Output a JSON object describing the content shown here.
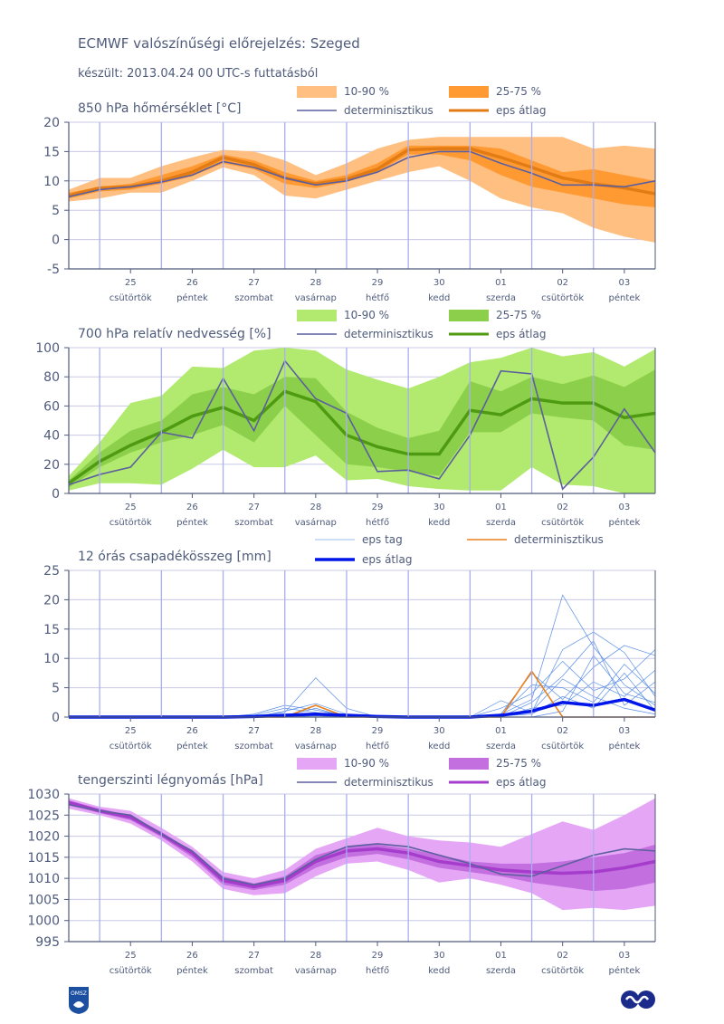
{
  "header": {
    "title": "ECMWF valószínűségi előrejelzés: Szeged",
    "subtitle": "készült: 2013.04.24 00 UTC-s futtatásból"
  },
  "logos": {
    "left": "OMSZ",
    "right": "ECMWF"
  },
  "colors": {
    "axis": "#4f5b7b",
    "grid": "#c8c8e6",
    "day_line": "#a9aef0",
    "deterministic": "#5c5f9e",
    "temp_band_outer": "#ffbf80",
    "temp_band_inner": "#ff9a33",
    "temp_mean": "#e37b14",
    "rh_band_outer": "#b1ea6e",
    "rh_band_inner": "#8ccf4b",
    "rh_mean": "#4e9b12",
    "precip_member": "#5a8fe6",
    "precip_det": "#e8801c",
    "precip_mean": "#0016e8",
    "pres_band_outer": "#e6a6f6",
    "pres_band_inner": "#c36fdf",
    "pres_mean": "#a53ccc"
  },
  "days": [
    {
      "num": "25",
      "name": "csütörtök"
    },
    {
      "num": "26",
      "name": "péntek"
    },
    {
      "num": "27",
      "name": "szombat"
    },
    {
      "num": "28",
      "name": "vasárnap"
    },
    {
      "num": "29",
      "name": "hétfő"
    },
    {
      "num": "30",
      "name": "kedd"
    },
    {
      "num": "01",
      "name": "szerda"
    },
    {
      "num": "02",
      "name": "csütörtök"
    },
    {
      "num": "03",
      "name": "péntek"
    }
  ],
  "chart_data": [
    {
      "type": "area",
      "title": "850 hPa hőmérséklet [°C]",
      "ylim": [
        -5,
        20
      ],
      "yticks": [
        -5,
        0,
        5,
        10,
        15,
        20
      ],
      "x_hours": [
        0,
        12,
        24,
        36,
        48,
        60,
        72,
        84,
        96,
        108,
        120,
        132,
        144,
        156,
        168,
        180,
        192,
        204,
        216,
        228
      ],
      "legend": {
        "outer": "10-90 %",
        "inner": "25-75 %",
        "det": "determinisztikus",
        "mean": "eps átlag"
      },
      "p10": [
        6.5,
        7.0,
        8.0,
        8.0,
        10.0,
        12.3,
        11.0,
        7.5,
        7.0,
        8.5,
        10.0,
        11.5,
        12.5,
        10.0,
        7.0,
        5.5,
        4.5,
        2.0,
        0.5,
        -0.5
      ],
      "p25": [
        7.0,
        8.2,
        8.5,
        9.5,
        10.8,
        13.0,
        12.0,
        9.5,
        8.8,
        9.8,
        11.5,
        14.5,
        14.5,
        13.5,
        11.0,
        9.0,
        8.0,
        7.0,
        6.0,
        5.5
      ],
      "p75": [
        8.0,
        9.0,
        9.5,
        11.0,
        12.5,
        14.5,
        13.5,
        11.5,
        10.0,
        11.0,
        13.0,
        16.0,
        16.0,
        16.0,
        15.5,
        13.5,
        11.5,
        12.0,
        11.0,
        10.0
      ],
      "p90": [
        8.5,
        10.5,
        10.5,
        12.5,
        14.0,
        15.3,
        15.0,
        13.5,
        11.0,
        13.0,
        15.5,
        17.0,
        17.5,
        17.5,
        17.5,
        17.5,
        17.5,
        15.5,
        16.0,
        15.5
      ],
      "mean": [
        7.5,
        8.8,
        9.0,
        10.0,
        11.5,
        14.0,
        12.8,
        10.5,
        9.5,
        10.3,
        12.0,
        15.3,
        15.5,
        15.5,
        14.0,
        12.3,
        10.5,
        9.5,
        8.8,
        7.8
      ],
      "det": [
        7.3,
        8.5,
        9.0,
        9.8,
        11.0,
        13.3,
        12.3,
        10.5,
        9.3,
        10.0,
        11.5,
        14.0,
        15.0,
        15.0,
        13.0,
        11.3,
        9.3,
        9.3,
        9.0,
        10.0
      ]
    },
    {
      "type": "area",
      "title": "700 hPa relatív nedvesség [%]",
      "ylim": [
        0,
        100
      ],
      "yticks": [
        0,
        20,
        40,
        60,
        80,
        100
      ],
      "x_hours": [
        0,
        12,
        24,
        36,
        48,
        60,
        72,
        84,
        96,
        108,
        120,
        132,
        144,
        156,
        168,
        180,
        192,
        204,
        216,
        228
      ],
      "legend": {
        "outer": "10-90 %",
        "inner": "25-75 %",
        "det": "determinisztikus",
        "mean": "eps átlag"
      },
      "p10": [
        2,
        7,
        7,
        6,
        17,
        30,
        18,
        18,
        26,
        9,
        10,
        5,
        3,
        2,
        2,
        18,
        6,
        5,
        0,
        0
      ],
      "p25": [
        4,
        18,
        28,
        35,
        40,
        47,
        35,
        60,
        40,
        20,
        18,
        15,
        12,
        42,
        42,
        55,
        52,
        50,
        33,
        30
      ],
      "p75": [
        9,
        28,
        43,
        50,
        68,
        73,
        68,
        80,
        79,
        56,
        45,
        38,
        43,
        77,
        70,
        80,
        75,
        81,
        73,
        85
      ],
      "p90": [
        12,
        35,
        62,
        67,
        87,
        86,
        98,
        100,
        98,
        85,
        78,
        72,
        80,
        90,
        93,
        100,
        94,
        97,
        87,
        99
      ],
      "mean": [
        7,
        22,
        33,
        42,
        53,
        59,
        50,
        70,
        63,
        40,
        32,
        27,
        27,
        57,
        54,
        65,
        62,
        62,
        52,
        55
      ],
      "det": [
        6,
        13,
        18,
        42,
        38,
        79,
        43,
        91,
        65,
        55,
        15,
        16,
        10,
        40,
        84,
        82,
        3,
        25,
        58,
        28
      ]
    },
    {
      "type": "line",
      "title": "12 órás csapadékösszeg [mm]",
      "ylim": [
        0,
        25
      ],
      "yticks": [
        0,
        5,
        10,
        15,
        20,
        25
      ],
      "x_hours": [
        0,
        12,
        24,
        36,
        48,
        60,
        72,
        84,
        96,
        108,
        120,
        132,
        144,
        156,
        168,
        180,
        192,
        204,
        216,
        228
      ],
      "legend": {
        "member": "eps tag",
        "det": "determinisztikus",
        "mean": "eps átlag"
      },
      "mean": [
        0,
        0,
        0,
        0,
        0,
        0,
        0.1,
        0.3,
        0.5,
        0.3,
        0.1,
        0,
        0,
        0,
        0.3,
        1.0,
        2.5,
        2.0,
        3.0,
        1.2
      ],
      "det": [
        0,
        0,
        0,
        0,
        0,
        0,
        0,
        0,
        2.0,
        0,
        0,
        0,
        0,
        0,
        0,
        7.8,
        0,
        0,
        0,
        0
      ],
      "members": [
        [
          0,
          0,
          0,
          0,
          0,
          0,
          0,
          1.0,
          2.3,
          0.5,
          0,
          0,
          0,
          0,
          0.5,
          3.0,
          20.8,
          12.0,
          5.5,
          2.0
        ],
        [
          0,
          0,
          0,
          0,
          0,
          0,
          0.2,
          0.8,
          6.7,
          1.5,
          0,
          0,
          0,
          0,
          2.8,
          0.8,
          11.5,
          14.5,
          11.0,
          3.5
        ],
        [
          0,
          0,
          0,
          0,
          0,
          0,
          0.5,
          2.0,
          1.2,
          0.2,
          0,
          0,
          0,
          0,
          0.5,
          7.5,
          3.0,
          8.5,
          12.2,
          10.5
        ],
        [
          0,
          0,
          0,
          0,
          0,
          0,
          0,
          0.3,
          0.5,
          0,
          0,
          0,
          0,
          0,
          1.5,
          4.0,
          9.5,
          4.5,
          6.5,
          11.5
        ],
        [
          0,
          0,
          0,
          0,
          0,
          0,
          0.3,
          1.5,
          0.8,
          0,
          0,
          0,
          0,
          0,
          0,
          2.5,
          7.0,
          13.0,
          2.0,
          6.0
        ],
        [
          0,
          0,
          0,
          0,
          0,
          0,
          0,
          0.5,
          0.3,
          0,
          0,
          0,
          0,
          0,
          0.3,
          5.5,
          5.0,
          2.5,
          9.0,
          4.0
        ],
        [
          0,
          0,
          0,
          0,
          0,
          0,
          0,
          0,
          0.2,
          0,
          0,
          0,
          0,
          0,
          0,
          1.5,
          2.0,
          6.0,
          3.5,
          8.0
        ],
        [
          0,
          0,
          0,
          0,
          0,
          0,
          0.1,
          0.4,
          0.6,
          0.1,
          0,
          0,
          0,
          0,
          0.2,
          0.5,
          3.5,
          1.5,
          7.5,
          1.0
        ],
        [
          0,
          0,
          0,
          0,
          0,
          0,
          0,
          0.2,
          1.5,
          0,
          0,
          0,
          0,
          0,
          0,
          0,
          1.0,
          10.5,
          4.0,
          2.5
        ],
        [
          0,
          0,
          0,
          0,
          0,
          0,
          0,
          0,
          0,
          0,
          0,
          0,
          0,
          0,
          0.5,
          1.0,
          6.5,
          3.5,
          1.5,
          0.5
        ]
      ]
    },
    {
      "type": "area",
      "title": "tengerszinti légnyomás [hPa]",
      "ylim": [
        995,
        1030
      ],
      "yticks": [
        995,
        1000,
        1005,
        1010,
        1015,
        1020,
        1025,
        1030
      ],
      "x_hours": [
        0,
        12,
        24,
        36,
        48,
        60,
        72,
        84,
        96,
        108,
        120,
        132,
        144,
        156,
        168,
        180,
        192,
        204,
        216,
        228
      ],
      "legend": {
        "outer": "10-90 %",
        "inner": "25-75 %",
        "det": "determinisztikus",
        "mean": "eps átlag"
      },
      "p10": [
        1026.5,
        1025.0,
        1023.0,
        1019.0,
        1014.0,
        1007.5,
        1006.0,
        1006.5,
        1010.5,
        1013.5,
        1014.0,
        1012.0,
        1009.0,
        1010.0,
        1008.5,
        1006.5,
        1002.5,
        1003.0,
        1002.5,
        1003.5
      ],
      "p25": [
        1027.3,
        1025.5,
        1023.8,
        1019.8,
        1015.0,
        1008.5,
        1007.2,
        1008.5,
        1012.5,
        1015.0,
        1015.8,
        1014.5,
        1012.5,
        1011.5,
        1010.5,
        1009.0,
        1008.0,
        1007.0,
        1007.5,
        1009.0
      ],
      "p75": [
        1028.5,
        1026.5,
        1025.0,
        1021.0,
        1016.5,
        1010.5,
        1008.8,
        1010.5,
        1015.5,
        1017.5,
        1018.0,
        1017.0,
        1015.5,
        1014.0,
        1013.5,
        1013.5,
        1014.0,
        1015.0,
        1016.0,
        1018.0
      ],
      "p90": [
        1029.0,
        1027.0,
        1026.0,
        1022.0,
        1017.5,
        1011.5,
        1010.0,
        1012.0,
        1017.0,
        1019.5,
        1022.0,
        1020.0,
        1019.0,
        1018.5,
        1017.5,
        1020.5,
        1023.5,
        1021.5,
        1025.0,
        1029.0
      ],
      "mean": [
        1028.0,
        1026.0,
        1024.5,
        1020.5,
        1016.0,
        1009.5,
        1008.0,
        1009.5,
        1014.0,
        1016.5,
        1017.0,
        1016.0,
        1014.0,
        1013.0,
        1012.0,
        1011.5,
        1011.2,
        1011.5,
        1012.5,
        1014.0
      ],
      "det": [
        1027.5,
        1026.0,
        1025.0,
        1020.5,
        1016.5,
        1010.0,
        1008.5,
        1010.0,
        1014.5,
        1017.5,
        1018.2,
        1017.5,
        1015.5,
        1013.5,
        1011.0,
        1010.5,
        1013.0,
        1015.5,
        1017.0,
        1016.5
      ]
    }
  ]
}
